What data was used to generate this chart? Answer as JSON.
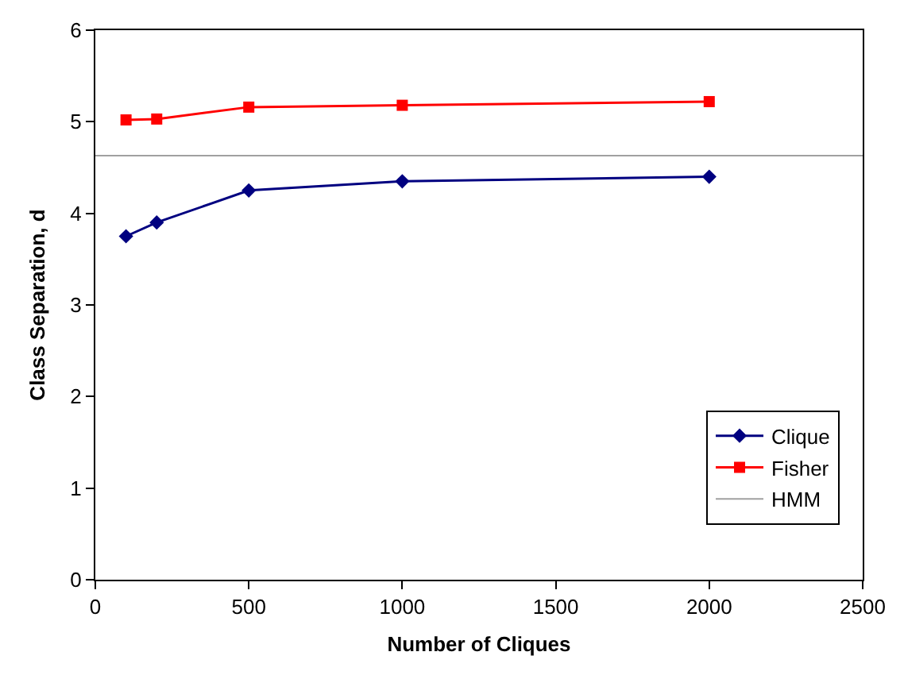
{
  "chart_data": {
    "type": "line",
    "xlabel": "Number of Cliques",
    "ylabel": "Class Separation, d",
    "xlim": [
      0,
      2500
    ],
    "xticks": [
      0,
      500,
      1000,
      1500,
      2000,
      2500
    ],
    "ylim": [
      0,
      6
    ],
    "yticks": [
      0,
      1,
      2,
      3,
      4,
      5,
      6
    ],
    "grid": false,
    "legend": "bottom right",
    "series": [
      {
        "name": "Clique",
        "color": "#000080",
        "marker": "diamond",
        "x": [
          100,
          200,
          500,
          1000,
          2000
        ],
        "values": [
          3.75,
          3.9,
          4.25,
          4.35,
          4.4
        ]
      },
      {
        "name": "Fisher",
        "color": "#ff0000",
        "marker": "square",
        "x": [
          100,
          200,
          500,
          1000,
          2000
        ],
        "values": [
          5.02,
          5.03,
          5.16,
          5.18,
          5.22
        ]
      },
      {
        "name": "HMM",
        "color": "#a0a0a0",
        "marker": "none",
        "x": [
          0,
          2500
        ],
        "values": [
          4.63,
          4.63
        ]
      }
    ]
  }
}
